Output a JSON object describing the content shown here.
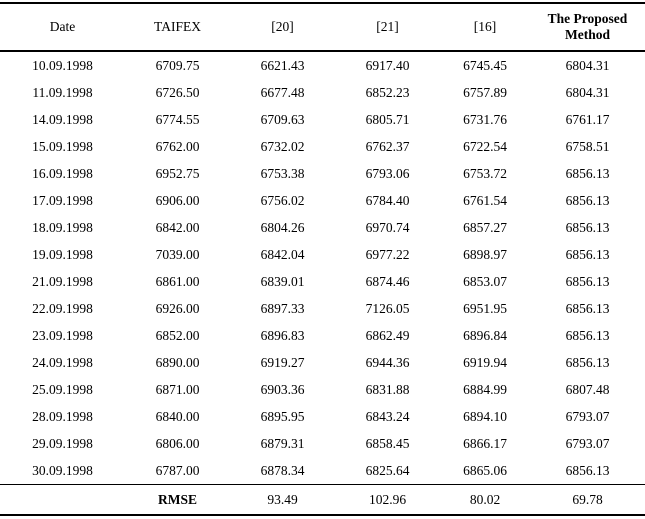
{
  "table": {
    "columns": [
      {
        "label": "Date",
        "bold": false
      },
      {
        "label": "TAIFEX",
        "bold": false
      },
      {
        "label": "[20]",
        "bold": false
      },
      {
        "label": "[21]",
        "bold": false
      },
      {
        "label": "[16]",
        "bold": false
      },
      {
        "label": "The Proposed Method",
        "bold": true
      }
    ],
    "rows": [
      [
        "10.09.1998",
        "6709.75",
        "6621.43",
        "6917.40",
        "6745.45",
        "6804.31"
      ],
      [
        "11.09.1998",
        "6726.50",
        "6677.48",
        "6852.23",
        "6757.89",
        "6804.31"
      ],
      [
        "14.09.1998",
        "6774.55",
        "6709.63",
        "6805.71",
        "6731.76",
        "6761.17"
      ],
      [
        "15.09.1998",
        "6762.00",
        "6732.02",
        "6762.37",
        "6722.54",
        "6758.51"
      ],
      [
        "16.09.1998",
        "6952.75",
        "6753.38",
        "6793.06",
        "6753.72",
        "6856.13"
      ],
      [
        "17.09.1998",
        "6906.00",
        "6756.02",
        "6784.40",
        "6761.54",
        "6856.13"
      ],
      [
        "18.09.1998",
        "6842.00",
        "6804.26",
        "6970.74",
        "6857.27",
        "6856.13"
      ],
      [
        "19.09.1998",
        "7039.00",
        "6842.04",
        "6977.22",
        "6898.97",
        "6856.13"
      ],
      [
        "21.09.1998",
        "6861.00",
        "6839.01",
        "6874.46",
        "6853.07",
        "6856.13"
      ],
      [
        "22.09.1998",
        "6926.00",
        "6897.33",
        "7126.05",
        "6951.95",
        "6856.13"
      ],
      [
        "23.09.1998",
        "6852.00",
        "6896.83",
        "6862.49",
        "6896.84",
        "6856.13"
      ],
      [
        "24.09.1998",
        "6890.00",
        "6919.27",
        "6944.36",
        "6919.94",
        "6856.13"
      ],
      [
        "25.09.1998",
        "6871.00",
        "6903.36",
        "6831.88",
        "6884.99",
        "6807.48"
      ],
      [
        "28.09.1998",
        "6840.00",
        "6895.95",
        "6843.24",
        "6894.10",
        "6793.07"
      ],
      [
        "29.09.1998",
        "6806.00",
        "6879.31",
        "6858.45",
        "6866.17",
        "6793.07"
      ],
      [
        "30.09.1998",
        "6787.00",
        "6878.34",
        "6825.64",
        "6865.06",
        "6856.13"
      ]
    ],
    "footer": {
      "label": "RMSE",
      "values": [
        "93.49",
        "102.96",
        "80.02",
        "69.78"
      ]
    }
  },
  "colors": {
    "text": "#000000",
    "background": "#ffffff",
    "rule": "#000000"
  }
}
